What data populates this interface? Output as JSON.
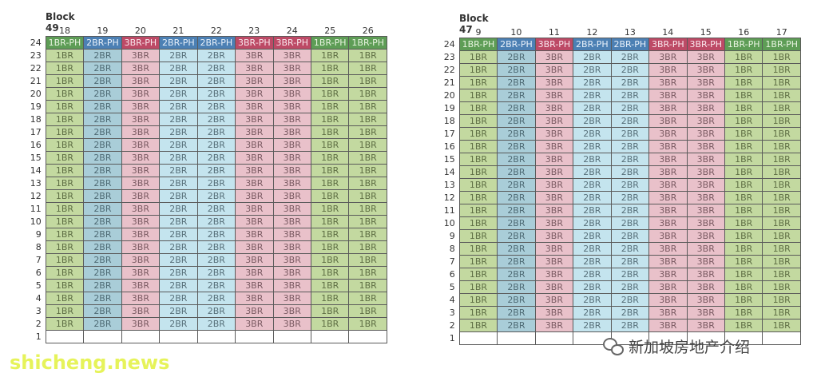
{
  "block49": {
    "title": "Block 49",
    "columns": [
      "18",
      "19",
      "20",
      "21",
      "22",
      "23",
      "24",
      "25",
      "26"
    ],
    "ph_row": {
      "floor": "24",
      "cells": [
        "1BR-PH",
        "2BR-PH",
        "3BR-PH",
        "2BR-PH",
        "2BR-PH",
        "3BR-PH",
        "3BR-PH",
        "1BR-PH",
        "1BR-PH"
      ]
    },
    "floors": [
      "23",
      "22",
      "21",
      "20",
      "19",
      "18",
      "17",
      "16",
      "15",
      "14",
      "13",
      "12",
      "11",
      "10",
      "9",
      "8",
      "7",
      "6",
      "5",
      "4",
      "3",
      "2"
    ],
    "typical_row": [
      "1BR",
      "2BR",
      "3BR",
      "2BR",
      "2BR",
      "3BR",
      "3BR",
      "1BR",
      "1BR"
    ],
    "bottom_floor": "1"
  },
  "block47": {
    "title": "Block 47",
    "columns": [
      "9",
      "10",
      "11",
      "12",
      "13",
      "14",
      "15",
      "16",
      "17"
    ],
    "ph_row": {
      "floor": "24",
      "cells": [
        "1BR-PH",
        "2BR-PH",
        "3BR-PH",
        "2BR-PH",
        "2BR-PH",
        "3BR-PH",
        "3BR-PH",
        "1BR-PH",
        "1BR-PH"
      ]
    },
    "floors": [
      "23",
      "22",
      "21",
      "20",
      "19",
      "18",
      "17",
      "16",
      "15",
      "14",
      "13",
      "12",
      "11",
      "10",
      "9",
      "8",
      "7",
      "6",
      "5",
      "4",
      "3",
      "2"
    ],
    "typical_row": [
      "1BR",
      "2BR",
      "3BR",
      "2BR",
      "2BR",
      "3BR",
      "3BR",
      "1BR",
      "1BR"
    ],
    "bottom_floor": "1"
  },
  "watermark": "shicheng.news",
  "wechat_label": "新加坡房地产介绍",
  "colors": {
    "1BR": "#c3d9a0",
    "2BR": "#a9cdd8",
    "3BR": "#e9c1ca",
    "1BR-PH": "#5e9d56",
    "2BR-PH": "#4c80b4",
    "3BR-PH": "#bd4a66"
  }
}
